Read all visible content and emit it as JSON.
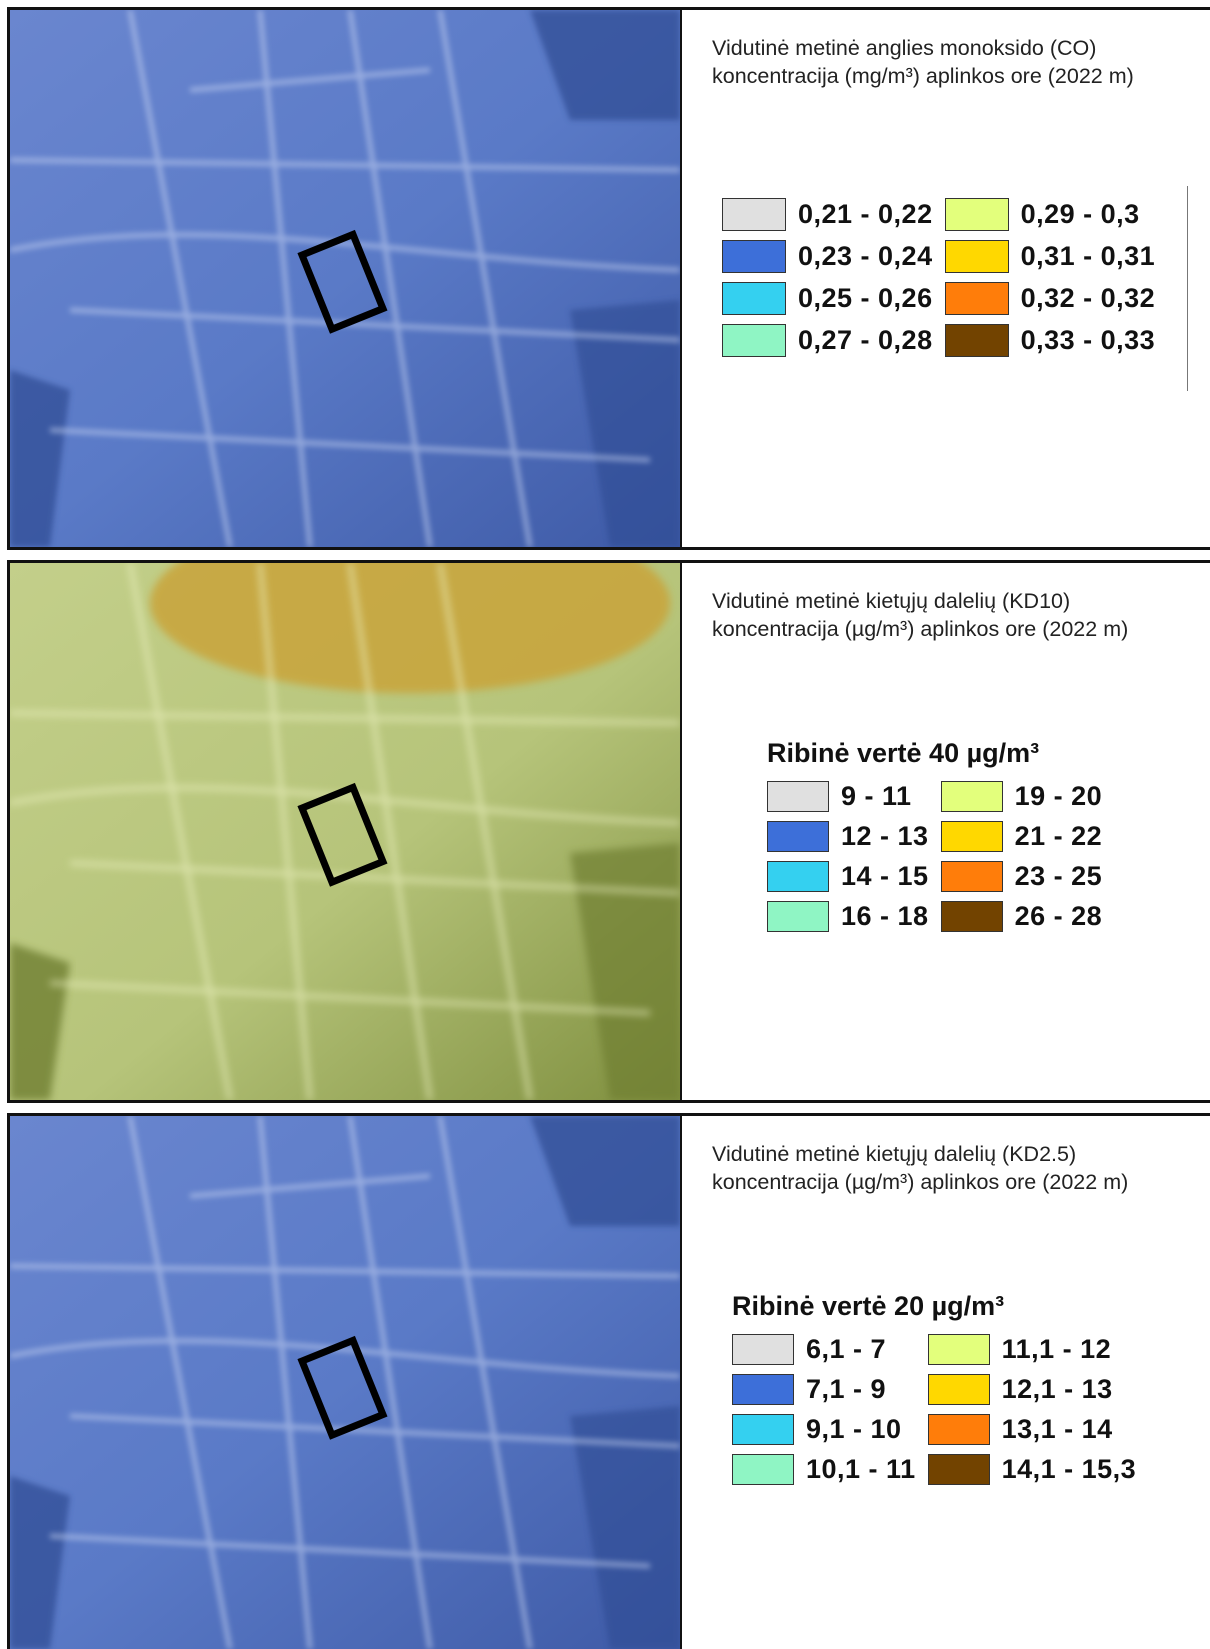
{
  "colors": {
    "sky_blue_map": "#4f6fbf",
    "yellow_green_map": "#b9c77a",
    "hotspot_ochre": "#c9a43a"
  },
  "panels": [
    {
      "title_line1": "Vidutinė metinė anglies monoksido (CO)",
      "title_line2": "koncentracija (mg/m³) aplinkos ore (2022 m)",
      "limit_label": "",
      "legend": [
        {
          "label": "0,21 - 0,22",
          "color": "#e0e0e0"
        },
        {
          "label": "0,23 - 0,24",
          "color": "#3d6fd9"
        },
        {
          "label": "0,25 - 0,26",
          "color": "#34d0f0"
        },
        {
          "label": "0,27 - 0,28",
          "color": "#8ff5c4"
        },
        {
          "label": "0,29 - 0,3",
          "color": "#e3ff7c"
        },
        {
          "label": "0,31 - 0,31",
          "color": "#ffd800"
        },
        {
          "label": "0,32 - 0,32",
          "color": "#ff7d0a"
        },
        {
          "label": "0,33 - 0,33",
          "color": "#724300"
        }
      ]
    },
    {
      "title_line1": "Vidutinė metinė kietųjų dalelių (KD10)",
      "title_line2": "koncentracija (µg/m³) aplinkos ore (2022 m)",
      "limit_label": "Ribinė vertė 40 µg/m³",
      "legend": [
        {
          "label": "9 - 11",
          "color": "#e0e0e0"
        },
        {
          "label": "12 - 13",
          "color": "#3d6fd9"
        },
        {
          "label": "14 - 15",
          "color": "#34d0f0"
        },
        {
          "label": "16 - 18",
          "color": "#8ff5c4"
        },
        {
          "label": "19 - 20",
          "color": "#e3ff7c"
        },
        {
          "label": "21 - 22",
          "color": "#ffd800"
        },
        {
          "label": "23 - 25",
          "color": "#ff7d0a"
        },
        {
          "label": "26 - 28",
          "color": "#724300"
        }
      ]
    },
    {
      "title_line1": "Vidutinė metinė kietųjų dalelių (KD2.5)",
      "title_line2": "koncentracija (µg/m³) aplinkos ore (2022 m)",
      "limit_label": "Ribinė vertė 20 µg/m³",
      "legend": [
        {
          "label": "6,1 - 7",
          "color": "#e0e0e0"
        },
        {
          "label": "7,1 - 9",
          "color": "#3d6fd9"
        },
        {
          "label": "9,1 - 10",
          "color": "#34d0f0"
        },
        {
          "label": "10,1 - 11",
          "color": "#8ff5c4"
        },
        {
          "label": "11,1 - 12",
          "color": "#e3ff7c"
        },
        {
          "label": "12,1 - 13",
          "color": "#ffd800"
        },
        {
          "label": "13,1 - 14",
          "color": "#ff7d0a"
        },
        {
          "label": "14,1 - 15,3",
          "color": "#724300"
        }
      ]
    }
  ]
}
